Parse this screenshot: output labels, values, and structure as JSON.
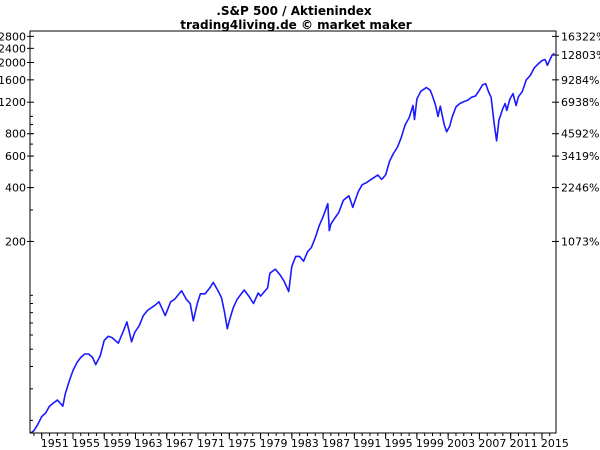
{
  "chart_data": {
    "type": "line",
    "title": ".S&P 500 / Aktienindex",
    "subtitle": "trading4living.de © market maker",
    "scale": "log",
    "ylim": [
      17,
      3000
    ],
    "xlim": [
      1949.5,
      2016.8
    ],
    "left_ticks": [
      {
        "v": 200,
        "label": "200"
      },
      {
        "v": 400,
        "label": "400"
      },
      {
        "v": 600,
        "label": "600"
      },
      {
        "v": 800,
        "label": "800"
      },
      {
        "v": 1200,
        "label": "1200"
      },
      {
        "v": 1600,
        "label": "1600"
      },
      {
        "v": 2000,
        "label": "2000"
      },
      {
        "v": 2400,
        "label": "2400"
      },
      {
        "v": 2800,
        "label": "2800"
      }
    ],
    "right_ticks": [
      {
        "v": 200,
        "label": "1073%"
      },
      {
        "v": 400,
        "label": "2246%"
      },
      {
        "v": 600,
        "label": "3419%"
      },
      {
        "v": 800,
        "label": "4592%"
      },
      {
        "v": 1200,
        "label": "6938%"
      },
      {
        "v": 1600,
        "label": "9284%"
      },
      {
        "v": 2200,
        "label": "12803%"
      },
      {
        "v": 2800,
        "label": "16322%"
      }
    ],
    "x_ticks": [
      "1951",
      "1955",
      "1959",
      "1963",
      "1967",
      "1971",
      "1975",
      "1979",
      "1983",
      "1987",
      "1991",
      "1995",
      "1999",
      "2003",
      "2007",
      "2011",
      "2015"
    ],
    "series": [
      {
        "line_color": "#1a1aff",
        "x": [
          1949.6,
          1950.0,
          1950.5,
          1951.0,
          1951.5,
          1952.0,
          1952.5,
          1953.0,
          1953.7,
          1954.0,
          1954.5,
          1955.0,
          1955.5,
          1956.0,
          1956.5,
          1957.0,
          1957.5,
          1957.9,
          1958.5,
          1959.0,
          1959.5,
          1960.0,
          1960.8,
          1961.5,
          1961.9,
          1962.5,
          1962.9,
          1963.5,
          1964.0,
          1964.5,
          1965.0,
          1965.5,
          1966.0,
          1966.8,
          1967.5,
          1968.0,
          1968.9,
          1969.5,
          1970.0,
          1970.4,
          1970.9,
          1971.3,
          1971.9,
          1972.5,
          1972.95,
          1973.5,
          1974.0,
          1974.4,
          1974.75,
          1975.0,
          1975.5,
          1976.0,
          1976.9,
          1977.5,
          1978.1,
          1978.7,
          1979.0,
          1979.9,
          1980.2,
          1980.9,
          1981.5,
          1982.0,
          1982.6,
          1983.0,
          1983.5,
          1984.0,
          1984.5,
          1985.0,
          1985.5,
          1986.0,
          1986.5,
          1987.0,
          1987.6,
          1987.8,
          1988.0,
          1988.5,
          1989.0,
          1989.6,
          1990.3,
          1990.8,
          1991.0,
          1991.5,
          1992.0,
          1992.5,
          1993.0,
          1993.5,
          1994.0,
          1994.5,
          1995.0,
          1995.5,
          1996.0,
          1996.5,
          1997.0,
          1997.5,
          1998.0,
          1998.5,
          1998.7,
          1999.0,
          1999.5,
          2000.2,
          2000.7,
          2001.0,
          2001.4,
          2001.7,
          2002.0,
          2002.5,
          2002.8,
          2003.2,
          2003.5,
          2004.0,
          2004.5,
          2005.0,
          2005.5,
          2006.0,
          2006.5,
          2007.0,
          2007.4,
          2007.8,
          2008.2,
          2008.5,
          2008.9,
          2009.2,
          2009.5,
          2010.0,
          2010.3,
          2010.5,
          2010.9,
          2011.3,
          2011.7,
          2012.0,
          2012.5,
          2013.0,
          2013.5,
          2014.0,
          2014.5,
          2015.0,
          2015.4,
          2015.7,
          2016.0,
          2016.3,
          2016.6
        ],
        "y": [
          17,
          17.5,
          19,
          21,
          22,
          24,
          25,
          26,
          24,
          28,
          33,
          38,
          42,
          45,
          47,
          47,
          45,
          41,
          46,
          56,
          59,
          58,
          54,
          64,
          71,
          55,
          62,
          68,
          77,
          82,
          85,
          88,
          92,
          77,
          92,
          95,
          106,
          95,
          90,
          72,
          90,
          102,
          102,
          110,
          118,
          107,
          97,
          80,
          65,
          72,
          85,
          95,
          107,
          99,
          90,
          103,
          99,
          110,
          133,
          140,
          130,
          120,
          105,
          145,
          165,
          165,
          155,
          175,
          185,
          210,
          245,
          275,
          325,
          230,
          250,
          270,
          290,
          340,
          360,
          310,
          330,
          380,
          415,
          425,
          440,
          455,
          470,
          445,
          470,
          560,
          620,
          670,
          760,
          900,
          980,
          1150,
          960,
          1250,
          1380,
          1450,
          1400,
          1300,
          1150,
          1000,
          1140,
          900,
          820,
          880,
          990,
          1130,
          1180,
          1210,
          1230,
          1280,
          1300,
          1400,
          1500,
          1520,
          1360,
          1280,
          900,
          730,
          950,
          1110,
          1180,
          1080,
          1250,
          1340,
          1150,
          1290,
          1380,
          1600,
          1690,
          1860,
          1960,
          2050,
          2080,
          1930,
          2060,
          2200,
          2250
        ]
      }
    ]
  }
}
